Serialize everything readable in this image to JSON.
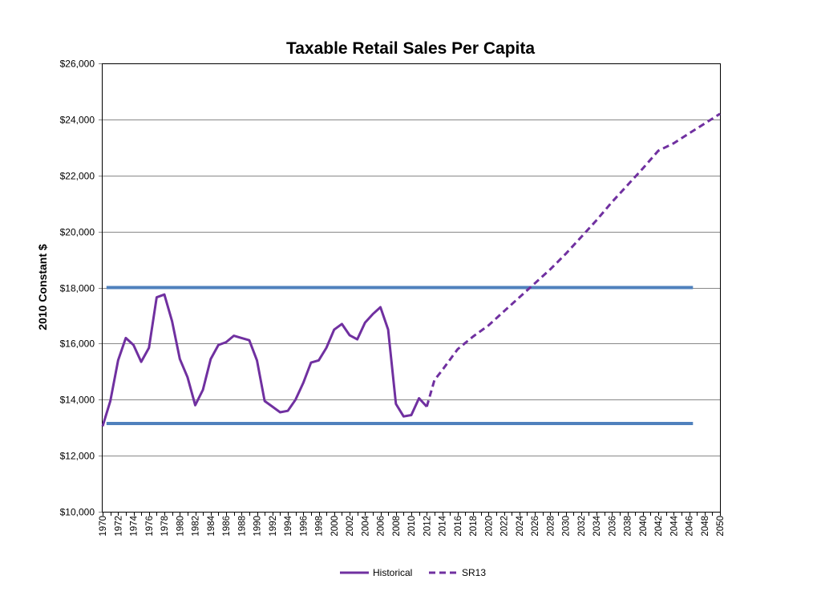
{
  "chart_data": {
    "type": "line",
    "title": "Taxable Retail Sales Per Capita",
    "xlabel": "",
    "ylabel": "2010 Constant $",
    "xlim": [
      1970,
      2050
    ],
    "ylim": [
      10000,
      26000
    ],
    "y_ticks": [
      10000,
      12000,
      14000,
      16000,
      18000,
      20000,
      22000,
      24000,
      26000
    ],
    "y_tick_labels": [
      "$10,000",
      "$12,000",
      "$14,000",
      "$16,000",
      "$18,000",
      "$20,000",
      "$22,000",
      "$24,000",
      "$26,000"
    ],
    "x_ticks": [
      "1970",
      "1972",
      "1974",
      "1976",
      "1978",
      "1980",
      "1982",
      "1984",
      "1986",
      "1988",
      "1990",
      "1992",
      "1994",
      "1996",
      "1998",
      "2000",
      "2002",
      "2004",
      "2006",
      "2008",
      "2010",
      "2012",
      "2014",
      "2016",
      "2018",
      "2020",
      "2022",
      "2024",
      "2026",
      "2028",
      "2030",
      "2032",
      "2034",
      "2036",
      "2038",
      "2040",
      "2042",
      "2044",
      "2046",
      "2048",
      "2050"
    ],
    "grid": true,
    "legend_position": "bottom-center",
    "series": [
      {
        "name": "Historical",
        "style": "solid",
        "color": "#7030A0",
        "x": [
          1970,
          1971,
          1972,
          1973,
          1974,
          1975,
          1976,
          1977,
          1978,
          1979,
          1980,
          1981,
          1982,
          1983,
          1984,
          1985,
          1986,
          1987,
          1988,
          1989,
          1990,
          1991,
          1992,
          1993,
          1994,
          1995,
          1996,
          1997,
          1998,
          1999,
          2000,
          2001,
          2002,
          2003,
          2004,
          2005,
          2006,
          2007,
          2008,
          2009,
          2010,
          2011,
          2012
        ],
        "y": [
          13050,
          13950,
          15400,
          16200,
          15950,
          15350,
          15850,
          17650,
          17750,
          16800,
          15450,
          14800,
          13800,
          14350,
          15450,
          15950,
          16050,
          16280,
          16200,
          16120,
          15400,
          13950,
          13750,
          13550,
          13600,
          14000,
          14600,
          15320,
          15400,
          15850,
          16500,
          16700,
          16300,
          16150,
          16750,
          17050,
          17300,
          16500,
          13850,
          13400,
          13450,
          14050,
          13750
        ]
      },
      {
        "name": "SR13",
        "style": "dashed",
        "color": "#7030A0",
        "x": [
          2012,
          2013,
          2014,
          2016,
          2018,
          2020,
          2022,
          2024,
          2026,
          2028,
          2030,
          2032,
          2034,
          2036,
          2038,
          2040,
          2042,
          2044,
          2046,
          2048,
          2050
        ],
        "y": [
          13750,
          14700,
          15050,
          15800,
          16250,
          16650,
          17150,
          17650,
          18150,
          18650,
          19200,
          19800,
          20400,
          21050,
          21650,
          22250,
          22880,
          23150,
          23500,
          23850,
          24200
        ]
      }
    ],
    "reference_lines": [
      {
        "y": 18000,
        "x_from": 1970.5,
        "x_to": 2046.5,
        "color": "#4F81BD"
      },
      {
        "y": 13150,
        "x_from": 1970.5,
        "x_to": 2046.5,
        "color": "#4F81BD"
      }
    ],
    "legend": [
      {
        "label": "Historical",
        "style": "solid",
        "color": "#7030A0"
      },
      {
        "label": "SR13",
        "style": "dashed",
        "color": "#7030A0"
      }
    ]
  }
}
